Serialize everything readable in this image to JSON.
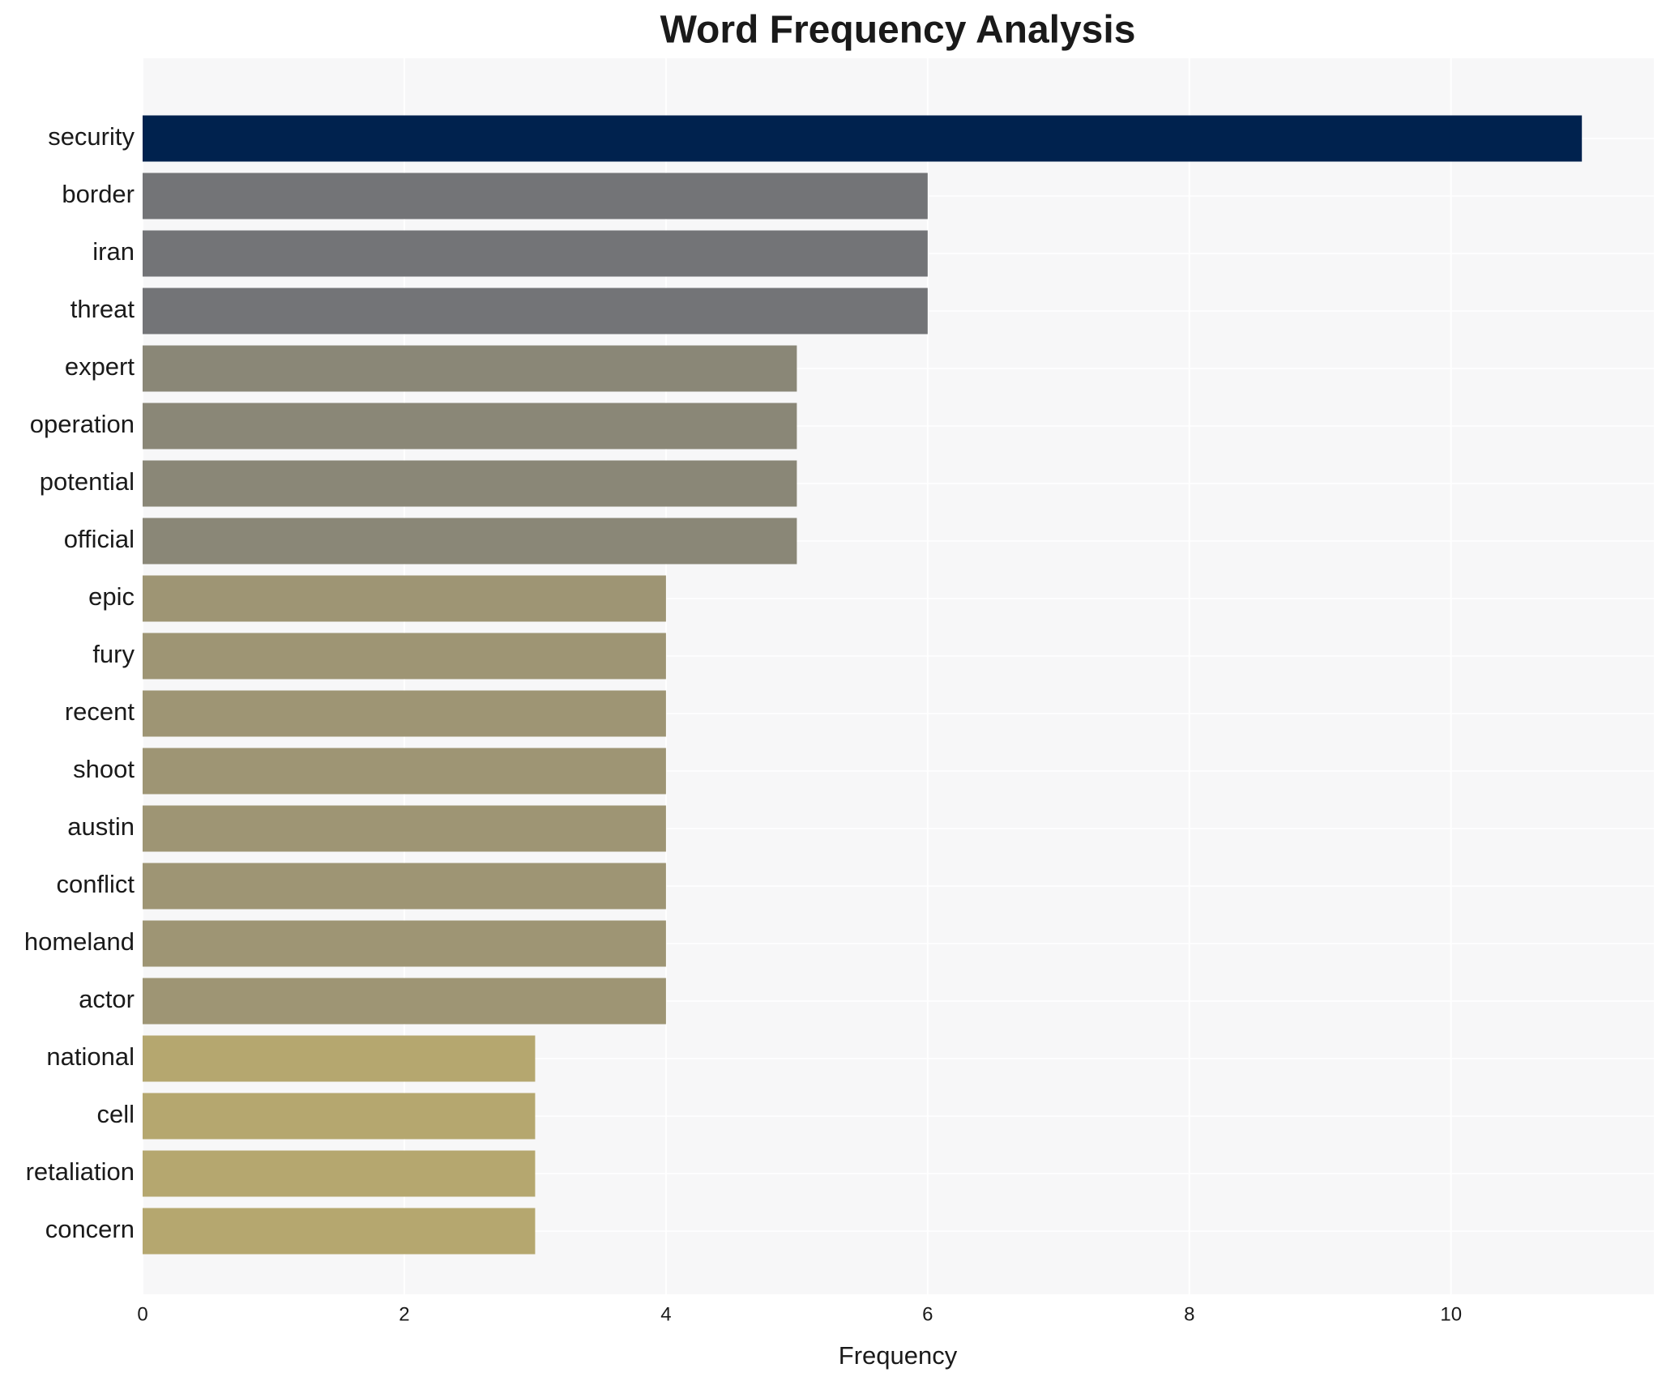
{
  "chart_data": {
    "type": "barh",
    "title": "Word Frequency Analysis",
    "xlabel": "Frequency",
    "categories": [
      "security",
      "border",
      "iran",
      "threat",
      "expert",
      "operation",
      "potential",
      "official",
      "epic",
      "fury",
      "recent",
      "shoot",
      "austin",
      "conflict",
      "homeland",
      "actor",
      "national",
      "cell",
      "retaliation",
      "concern"
    ],
    "values": [
      11,
      6,
      6,
      6,
      5,
      5,
      5,
      5,
      4,
      4,
      4,
      4,
      4,
      4,
      4,
      4,
      3,
      3,
      3,
      3
    ],
    "colors": [
      "#00224e",
      "#737477",
      "#737477",
      "#737477",
      "#8a8777",
      "#8a8777",
      "#8a8777",
      "#8a8777",
      "#9e9574",
      "#9e9574",
      "#9e9574",
      "#9e9574",
      "#9e9574",
      "#9e9574",
      "#9e9574",
      "#9e9574",
      "#b5a76f",
      "#b5a76f",
      "#b5a76f",
      "#b5a76f"
    ],
    "xlim": [
      0,
      11.55
    ],
    "xticks": [
      0,
      2,
      4,
      6,
      8,
      10
    ],
    "grid": true
  }
}
